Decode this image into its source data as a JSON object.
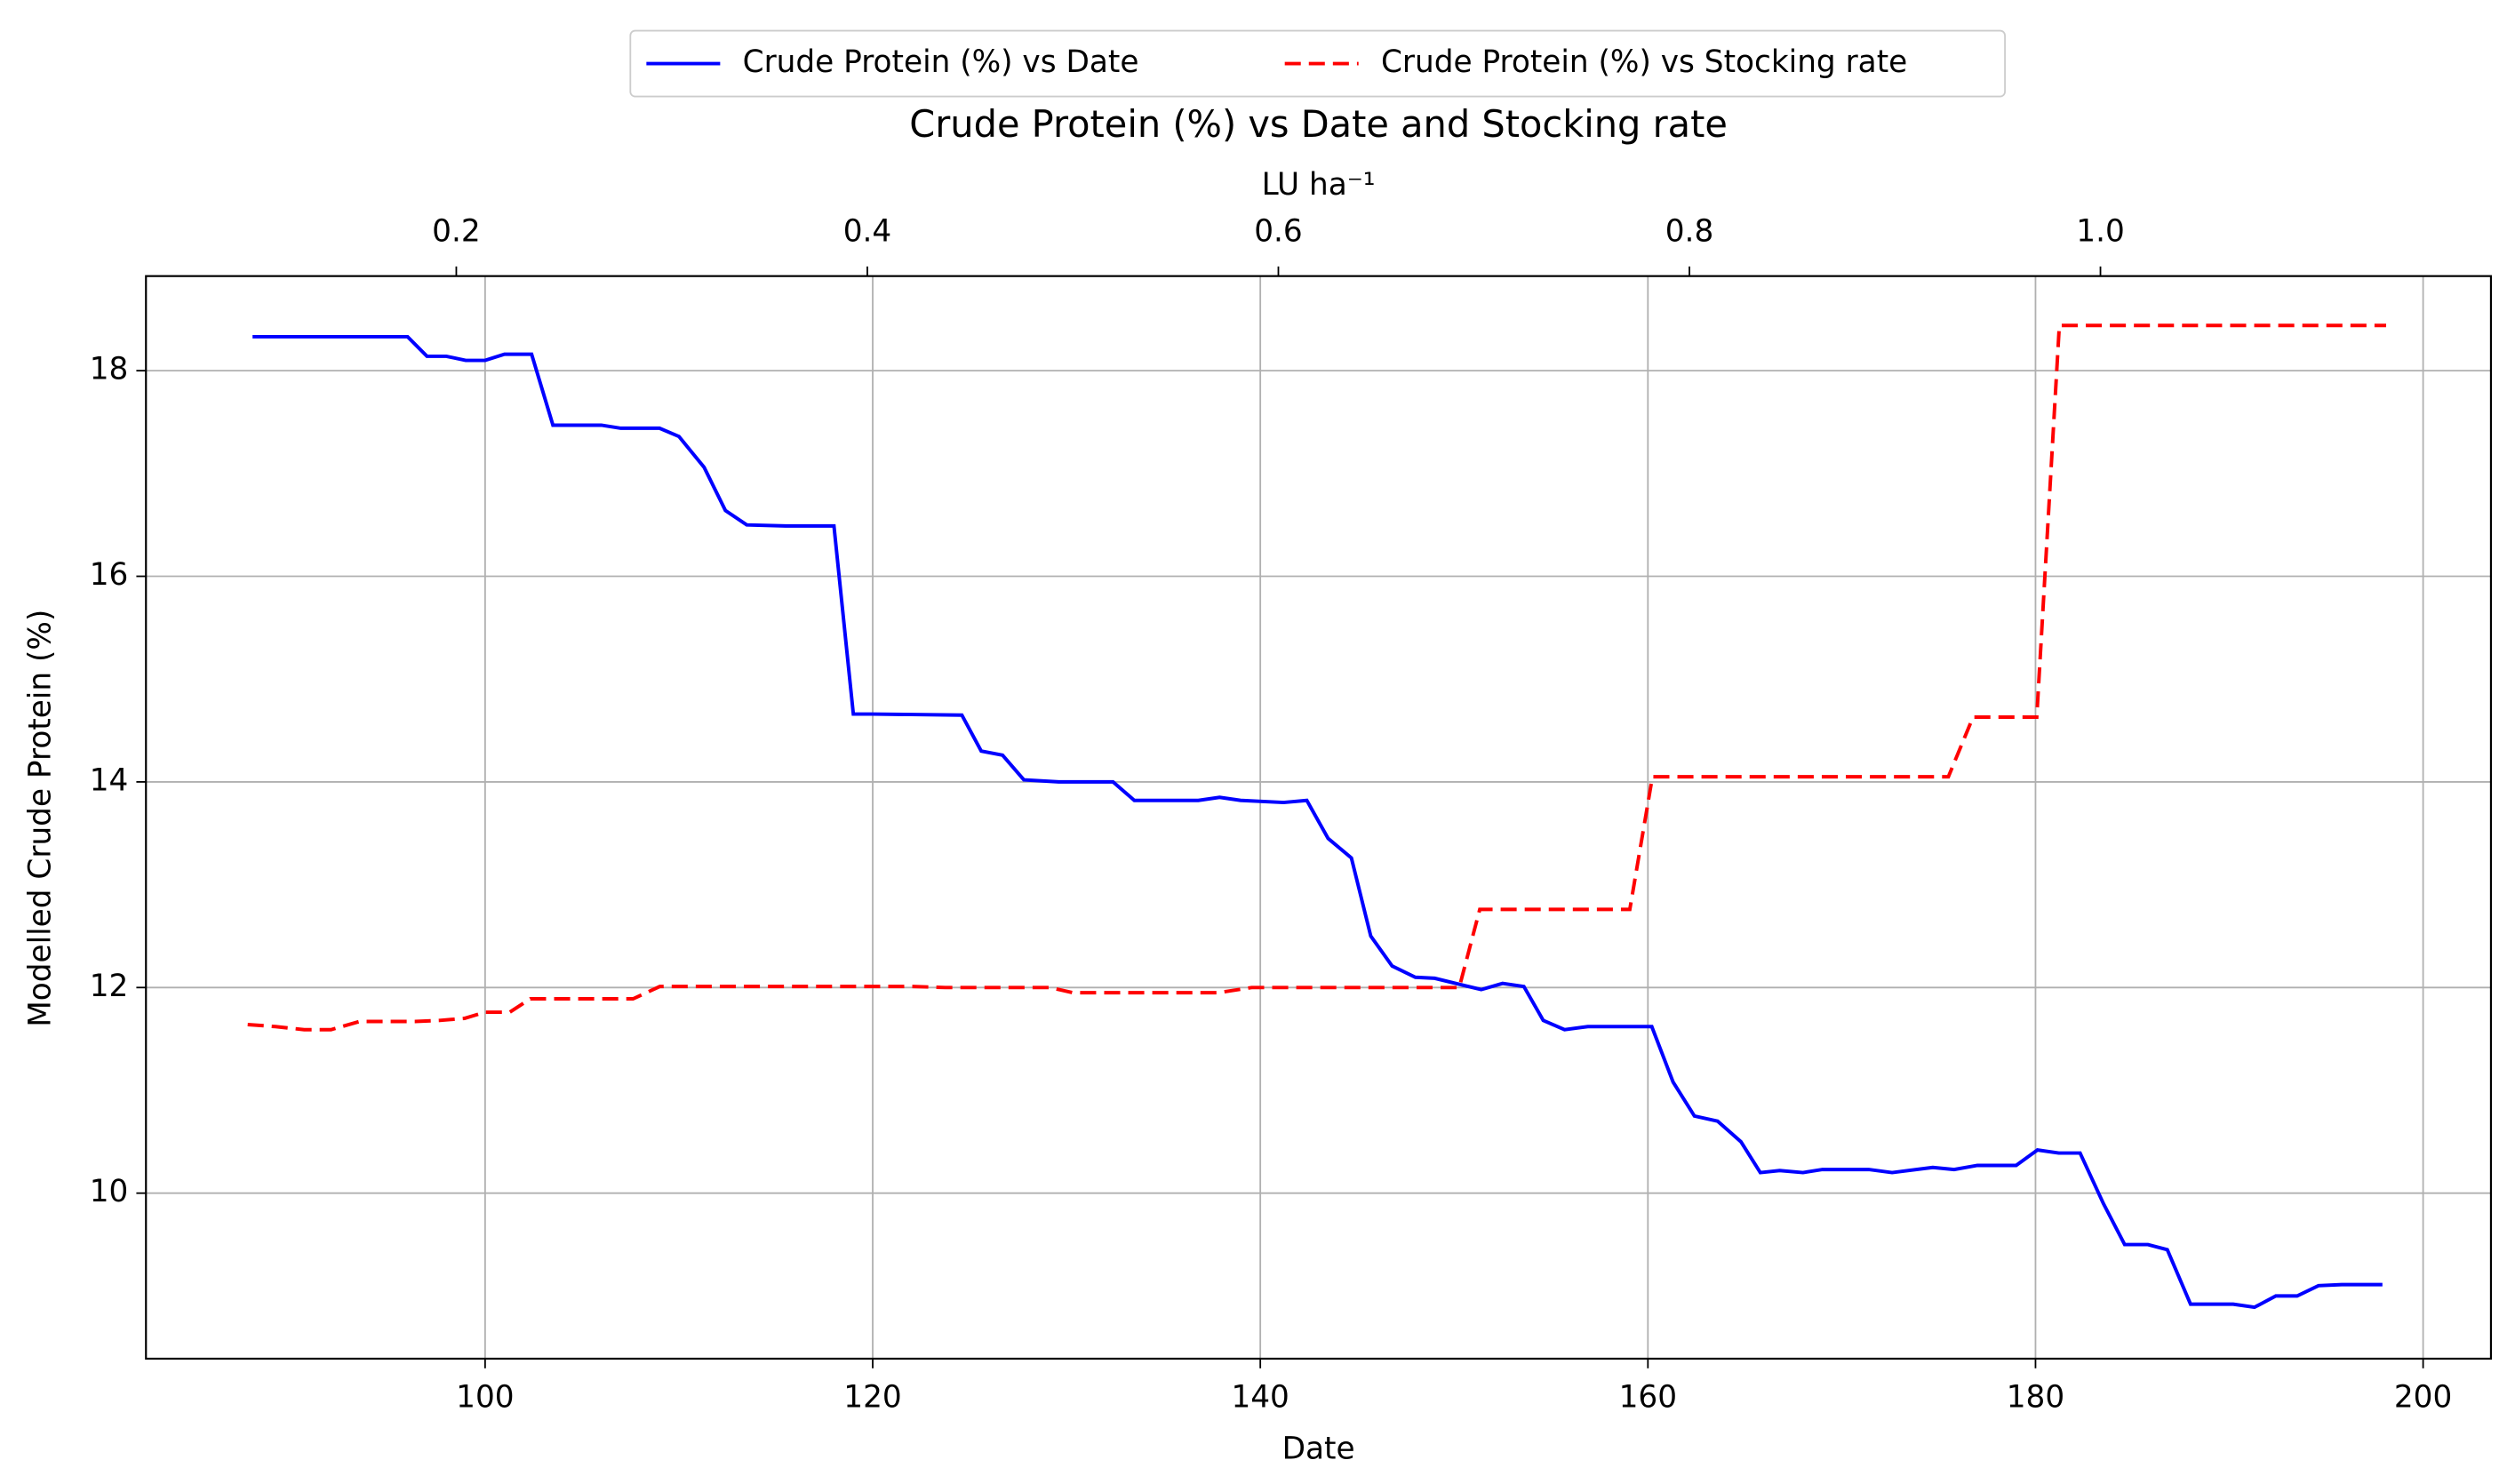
{
  "chart_data": {
    "type": "line",
    "title": "Crude Protein (%) vs Date and Stocking rate",
    "xlabel": "Date",
    "x2label": "LU ha⁻¹",
    "ylabel": "Modelled Crude Protein (%)",
    "xlim": [
      82.5,
      203.5
    ],
    "xticks": [
      100,
      120,
      140,
      160,
      180,
      200
    ],
    "x2lim": [
      0.049,
      1.19
    ],
    "x2ticks": [
      0.2,
      0.4,
      0.6,
      0.8,
      {
        "value": 1.0,
        "label": "1.0"
      }
    ],
    "ylim": [
      8.39,
      18.92
    ],
    "yticks": [
      10,
      12,
      14,
      16,
      18
    ],
    "grid": true,
    "legend": "upper center",
    "series": [
      {
        "name": "Crude Protein (%) vs Date",
        "color": "#0000ff",
        "linestyle": "solid",
        "axis": "x",
        "x": [
          88,
          96,
          97,
          98,
          99,
          100,
          101,
          102.4,
          103.5,
          106,
          107,
          109,
          110,
          111.3,
          112.4,
          113.5,
          115.5,
          118,
          119,
          120,
          124.6,
          125.6,
          126.7,
          127.8,
          129.6,
          132.4,
          133.5,
          136.8,
          137.9,
          139,
          141.2,
          142.4,
          143.5,
          144.7,
          145.7,
          146.8,
          148,
          149,
          150.3,
          151.4,
          152.5,
          153.6,
          154.6,
          155.7,
          156.9,
          160.2,
          161.3,
          162.4,
          163.6,
          164.8,
          165.8,
          166.8,
          168,
          169,
          171.4,
          172.6,
          174.7,
          175.8,
          177,
          179,
          180.1,
          181.2,
          182.3,
          183.5,
          184.6,
          185.8,
          186.8,
          188,
          190.2,
          191.3,
          192.4,
          193.5,
          194.6,
          195.8,
          197.9
        ],
        "values": [
          18.33,
          18.33,
          18.14,
          18.14,
          18.1,
          18.1,
          18.16,
          18.16,
          17.47,
          17.47,
          17.44,
          17.44,
          17.36,
          17.06,
          16.64,
          16.5,
          16.49,
          16.49,
          14.66,
          14.66,
          14.65,
          14.3,
          14.26,
          14.02,
          14.0,
          14.0,
          13.82,
          13.82,
          13.85,
          13.82,
          13.8,
          13.82,
          13.45,
          13.26,
          12.5,
          12.21,
          12.1,
          12.09,
          12.03,
          11.98,
          12.04,
          12.01,
          11.68,
          11.59,
          11.62,
          11.62,
          11.08,
          10.75,
          10.7,
          10.5,
          10.2,
          10.22,
          10.2,
          10.23,
          10.23,
          10.2,
          10.25,
          10.23,
          10.27,
          10.27,
          10.42,
          10.39,
          10.39,
          9.9,
          9.5,
          9.5,
          9.45,
          8.92,
          8.92,
          8.89,
          9.0,
          9.0,
          9.1,
          9.11,
          9.11
        ]
      },
      {
        "name": "Crude Protein (%) vs Stocking rate",
        "color": "#ff0000",
        "linestyle": "dashed",
        "axis": "x2",
        "x": [
          0.0985,
          0.112,
          0.126,
          0.139,
          0.153,
          0.18,
          0.192,
          0.204,
          0.214,
          0.226,
          0.236,
          0.286,
          0.299,
          0.422,
          0.438,
          0.489,
          0.5,
          0.571,
          0.587,
          0.688,
          0.698,
          0.771,
          0.782,
          0.926,
          0.938,
          0.969,
          0.98,
          1.139
        ],
        "values": [
          11.64,
          11.62,
          11.59,
          11.59,
          11.67,
          11.67,
          11.68,
          11.7,
          11.76,
          11.76,
          11.89,
          11.89,
          12.01,
          12.01,
          12.0,
          12.0,
          11.95,
          11.95,
          12.0,
          12.0,
          12.76,
          12.76,
          14.05,
          14.05,
          14.63,
          14.63,
          18.44,
          18.44
        ]
      }
    ]
  }
}
